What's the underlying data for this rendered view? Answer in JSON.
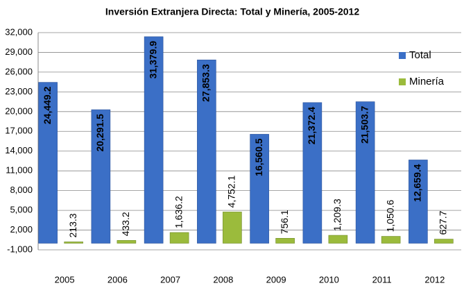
{
  "chart_data": {
    "type": "bar",
    "title": "Inversión Extranjera Directa: Total y Minería, 2005-2012",
    "categories": [
      "2005",
      "2006",
      "2007",
      "2008",
      "2009",
      "2010",
      "2011",
      "2012"
    ],
    "series": [
      {
        "name": "Total",
        "color": "#3b6fc6",
        "values": [
          24449.2,
          20291.5,
          31379.9,
          27853.3,
          16560.5,
          21372.4,
          21503.7,
          12659.4
        ],
        "value_labels": [
          "24,449.2",
          "20,291.5",
          "31,379.9",
          "27,853.3",
          "16,560.5",
          "21,372.4",
          "21,503.7",
          "12,659.4"
        ]
      },
      {
        "name": "Minería",
        "color": "#9bbb3c",
        "values": [
          213.3,
          433.2,
          1636.2,
          4752.1,
          756.1,
          1209.3,
          1050.6,
          627.7
        ],
        "value_labels": [
          "213.3",
          "433.2",
          "1,636.2",
          "4,752.1",
          "756.1",
          "1,209.3",
          "1,050.6",
          "627.7"
        ]
      }
    ],
    "ylim": [
      -1000,
      32000
    ],
    "yticks": [
      {
        "value": -1000,
        "label": "-1,000"
      },
      {
        "value": 2000,
        "label": "2,000"
      },
      {
        "value": 5000,
        "label": "5,000"
      },
      {
        "value": 8000,
        "label": "8,000"
      },
      {
        "value": 11000,
        "label": "11,000"
      },
      {
        "value": 14000,
        "label": "14,000"
      },
      {
        "value": 17000,
        "label": "17,000"
      },
      {
        "value": 20000,
        "label": "20,000"
      },
      {
        "value": 23000,
        "label": "23,000"
      },
      {
        "value": 26000,
        "label": "26,000"
      },
      {
        "value": 29000,
        "label": "29,000"
      },
      {
        "value": 32000,
        "label": "32,000"
      }
    ],
    "grid": true,
    "legend": "right"
  }
}
